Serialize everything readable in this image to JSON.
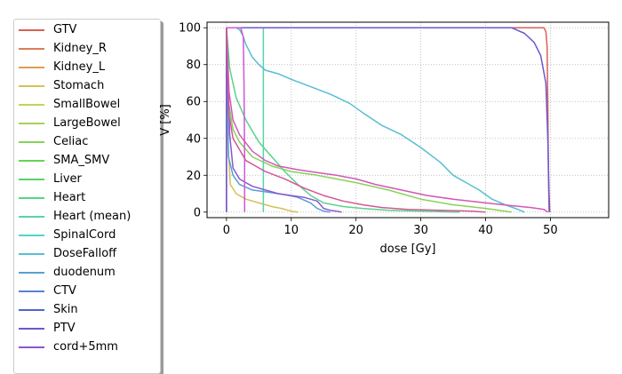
{
  "chart_data": {
    "type": "line",
    "title": "",
    "xlabel": "dose [Gy]",
    "ylabel": "V [%]",
    "xlim": [
      -3,
      59
    ],
    "ylim": [
      -3,
      103
    ],
    "xticks": [
      0,
      10,
      20,
      30,
      40,
      50
    ],
    "yticks": [
      0,
      20,
      40,
      60,
      80,
      100
    ],
    "grid": true,
    "legend_position": "left, outside plot",
    "series": [
      {
        "name": "GTV",
        "color": "#db5f57",
        "points": [
          [
            0,
            0
          ],
          [
            0,
            100
          ],
          [
            49.0,
            100
          ],
          [
            49.3,
            98
          ],
          [
            49.5,
            90
          ],
          [
            49.6,
            60
          ],
          [
            49.7,
            20
          ],
          [
            49.8,
            0
          ]
        ]
      },
      {
        "name": "Kidney_R",
        "color": "#db7e57",
        "points": [
          [
            0,
            0
          ],
          [
            0,
            0
          ]
        ]
      },
      {
        "name": "Kidney_L",
        "color": "#db9e57",
        "points": [
          [
            0,
            0
          ],
          [
            0,
            0
          ]
        ]
      },
      {
        "name": "Stomach",
        "color": "#d3c157",
        "points": [
          [
            0,
            100
          ],
          [
            0.2,
            40
          ],
          [
            0.6,
            15
          ],
          [
            1.5,
            10
          ],
          [
            3,
            7
          ],
          [
            5,
            5
          ],
          [
            7,
            3
          ],
          [
            8.5,
            2
          ],
          [
            10,
            0.5
          ],
          [
            11,
            0
          ]
        ]
      },
      {
        "name": "SmallBowel",
        "color": "#c4d357",
        "points": [
          [
            0,
            0
          ],
          [
            0,
            0
          ]
        ]
      },
      {
        "name": "LargeBowel",
        "color": "#a5d357",
        "points": [
          [
            0,
            0
          ],
          [
            0,
            0
          ]
        ]
      },
      {
        "name": "Celiac",
        "color": "#86d357",
        "points": [
          [
            0,
            100
          ],
          [
            0.3,
            60
          ],
          [
            1,
            45
          ],
          [
            2,
            38
          ],
          [
            4,
            30
          ],
          [
            7,
            25
          ],
          [
            10,
            22
          ],
          [
            14,
            20
          ],
          [
            20,
            16
          ],
          [
            25,
            12
          ],
          [
            30,
            7
          ],
          [
            35,
            4
          ],
          [
            40,
            2
          ],
          [
            44,
            0
          ]
        ]
      },
      {
        "name": "SMA_SMV",
        "color": "#67d357",
        "points": [
          [
            0,
            0
          ],
          [
            0,
            0
          ]
        ]
      },
      {
        "name": "Liver",
        "color": "#57d36b",
        "points": [
          [
            0,
            0
          ],
          [
            0,
            0
          ]
        ]
      },
      {
        "name": "Heart",
        "color": "#57d38a",
        "points": [
          [
            0,
            100
          ],
          [
            0.5,
            78
          ],
          [
            1.5,
            62
          ],
          [
            3,
            50
          ],
          [
            5,
            38
          ],
          [
            7,
            30
          ],
          [
            9,
            22
          ],
          [
            11,
            15
          ],
          [
            13,
            9
          ],
          [
            15,
            5
          ],
          [
            18,
            3
          ],
          [
            21,
            2
          ],
          [
            25,
            1
          ],
          [
            30,
            0.5
          ],
          [
            36,
            0
          ]
        ]
      },
      {
        "name": "Heart (mean)",
        "color": "#57d3a9",
        "points": [
          [
            5.7,
            0
          ],
          [
            5.7,
            100
          ]
        ]
      },
      {
        "name": "SpinalCord",
        "color": "#57d3c9",
        "points": [
          [
            0,
            0
          ],
          [
            0,
            0
          ]
        ]
      },
      {
        "name": "DoseFalloff",
        "color": "#57bed3",
        "points": [
          [
            0,
            100
          ],
          [
            1.5,
            100
          ],
          [
            2,
            99
          ],
          [
            2.5,
            96
          ],
          [
            3,
            91
          ],
          [
            4,
            84
          ],
          [
            5,
            80
          ],
          [
            6,
            77
          ],
          [
            8,
            75
          ],
          [
            10,
            72
          ],
          [
            13,
            68
          ],
          [
            16,
            64
          ],
          [
            19,
            59
          ],
          [
            21,
            54
          ],
          [
            24,
            47
          ],
          [
            27,
            42
          ],
          [
            30,
            35
          ],
          [
            33,
            27
          ],
          [
            35,
            20
          ],
          [
            37,
            16
          ],
          [
            39,
            12
          ],
          [
            41,
            7
          ],
          [
            43,
            4
          ],
          [
            45,
            1.5
          ],
          [
            46,
            0
          ]
        ]
      },
      {
        "name": "duodenum",
        "color": "#579fd3",
        "points": [
          [
            0,
            100
          ],
          [
            0.3,
            30
          ],
          [
            1,
            20
          ],
          [
            2,
            15
          ],
          [
            4,
            12
          ],
          [
            6,
            11
          ],
          [
            9,
            9.5
          ],
          [
            11,
            8
          ],
          [
            13,
            5
          ],
          [
            14,
            2
          ],
          [
            15,
            0.5
          ],
          [
            16,
            0
          ]
        ]
      },
      {
        "name": "CTV",
        "color": "#5780d3",
        "points": [
          [
            0,
            0
          ],
          [
            0,
            0
          ]
        ]
      },
      {
        "name": "Skin",
        "color": "#5761d3",
        "points": [
          [
            0,
            0
          ],
          [
            0,
            0
          ]
        ]
      },
      {
        "name": "PTV",
        "color": "#6b57d3",
        "points": [
          [
            0,
            0
          ],
          [
            0,
            100
          ],
          [
            44,
            100
          ],
          [
            46,
            97
          ],
          [
            47.5,
            92
          ],
          [
            48.5,
            85
          ],
          [
            49.3,
            70
          ],
          [
            49.6,
            40
          ],
          [
            49.8,
            10
          ],
          [
            49.9,
            0
          ]
        ]
      },
      {
        "name": "cord+5mm",
        "color": "#8a57d3",
        "points": [
          [
            0,
            100
          ],
          [
            0.5,
            42
          ],
          [
            1,
            24
          ],
          [
            2,
            18
          ],
          [
            3,
            16
          ],
          [
            4,
            14
          ],
          [
            6,
            12
          ],
          [
            8,
            10
          ],
          [
            10,
            9
          ],
          [
            12,
            8
          ],
          [
            14,
            6
          ],
          [
            15,
            2
          ],
          [
            16,
            1
          ],
          [
            17,
            0.5
          ],
          [
            17.8,
            0
          ]
        ]
      },
      {
        "name": "",
        "color": "#cf57d3",
        "points": [
          [
            0,
            100
          ],
          [
            2.2,
            100
          ],
          [
            2.6,
            95
          ],
          [
            2.7,
            70
          ],
          [
            2.8,
            30
          ],
          [
            2.8,
            0
          ]
        ]
      },
      {
        "name": "",
        "color": "#d357b6",
        "points": [
          [
            0,
            100
          ],
          [
            0.4,
            65
          ],
          [
            1,
            50
          ],
          [
            2,
            42
          ],
          [
            4,
            33
          ],
          [
            6,
            28
          ],
          [
            8,
            25
          ],
          [
            11,
            23
          ],
          [
            14,
            21.5
          ],
          [
            17,
            20
          ],
          [
            20,
            18
          ],
          [
            23,
            15
          ],
          [
            27,
            12
          ],
          [
            31,
            9
          ],
          [
            35,
            7
          ],
          [
            40,
            5
          ],
          [
            44,
            3.5
          ],
          [
            47,
            2.5
          ],
          [
            49,
            1.5
          ],
          [
            49.6,
            0
          ]
        ]
      },
      {
        "name": "",
        "color": "#d35795",
        "points": [
          [
            0,
            100
          ],
          [
            0.3,
            55
          ],
          [
            1,
            40
          ],
          [
            3,
            28
          ],
          [
            6,
            22
          ],
          [
            9,
            18
          ],
          [
            12,
            13
          ],
          [
            15,
            9
          ],
          [
            18,
            6
          ],
          [
            21,
            4
          ],
          [
            24,
            2.5
          ],
          [
            28,
            1.5
          ],
          [
            33,
            1
          ],
          [
            38,
            0.5
          ],
          [
            40,
            0
          ]
        ]
      }
    ]
  }
}
